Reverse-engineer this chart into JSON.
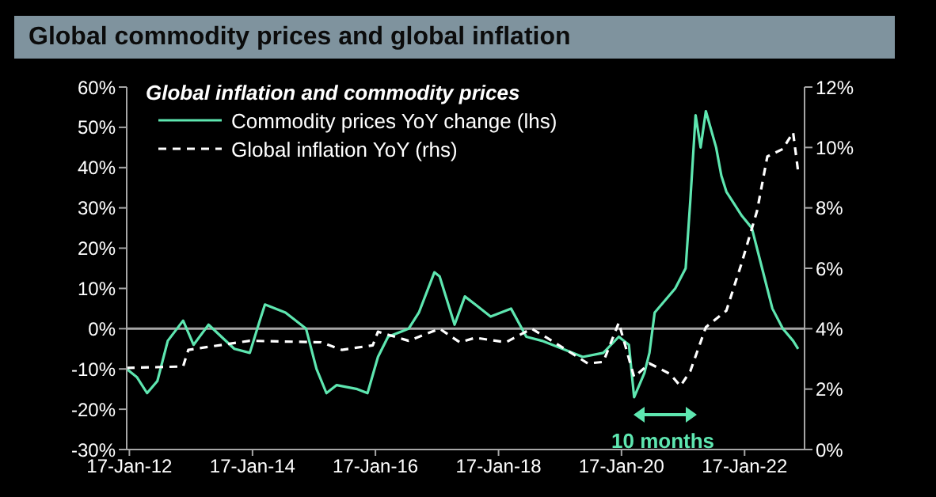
{
  "chart_data": {
    "type": "line",
    "title": "Global commodity prices and global inflation",
    "legend_title": "Global inflation and commodity prices",
    "legend": "top left",
    "grid": false,
    "marker": "none",
    "annotations": [
      "10 months"
    ],
    "xlim": [
      "2012-01-01",
      "2023-01-08"
    ],
    "xticks": [
      {
        "value": "2012-01-17",
        "label": "17-Jan-12"
      },
      {
        "value": "2014-01-17",
        "label": "17-Jan-14"
      },
      {
        "value": "2016-01-17",
        "label": "17-Jan-16"
      },
      {
        "value": "2018-01-17",
        "label": "17-Jan-18"
      },
      {
        "value": "2020-01-17",
        "label": "17-Jan-20"
      },
      {
        "value": "2022-01-17",
        "label": "17-Jan-22"
      }
    ],
    "ylim": [
      -30,
      60
    ],
    "yticks": [
      {
        "value": -30,
        "label": "-30%"
      },
      {
        "value": -20,
        "label": "-20%"
      },
      {
        "value": -10,
        "label": "-10%"
      },
      {
        "value": 0,
        "label": "0%"
      },
      {
        "value": 10,
        "label": "10%"
      },
      {
        "value": 20,
        "label": "20%"
      },
      {
        "value": 30,
        "label": "30%"
      },
      {
        "value": 40,
        "label": "40%"
      },
      {
        "value": 50,
        "label": "50%"
      },
      {
        "value": 60,
        "label": "60%"
      }
    ],
    "y2lim": [
      0,
      12
    ],
    "y2ticks": [
      {
        "value": 0,
        "label": "0%"
      },
      {
        "value": 2,
        "label": "2%"
      },
      {
        "value": 4,
        "label": "4%"
      },
      {
        "value": 6,
        "label": "6%"
      },
      {
        "value": 8,
        "label": "8%"
      },
      {
        "value": 10,
        "label": "10%"
      },
      {
        "value": 12,
        "label": "12%"
      }
    ],
    "ref_lines": [
      {
        "axis": "y",
        "value": 0,
        "color": "#a6a6a6"
      }
    ],
    "series": [
      {
        "name": "Commodity prices YoY change (lhs)",
        "color": "#5ee6b0",
        "line_style": "solid",
        "x": [
          "2012-01",
          "2012-03",
          "2012-05",
          "2012-07",
          "2012-09",
          "2012-12",
          "2013-02",
          "2013-05",
          "2013-10",
          "2014-01",
          "2014-03",
          "2014-04",
          "2014-08",
          "2014-12",
          "2015-02",
          "2015-04",
          "2015-06",
          "2015-10",
          "2015-12",
          "2016-02",
          "2016-04",
          "2016-08",
          "2016-10",
          "2017-01",
          "2017-02",
          "2017-05",
          "2017-07",
          "2017-09",
          "2017-12",
          "2018-04",
          "2018-07",
          "2018-10",
          "2019-02",
          "2019-06",
          "2019-10",
          "2020-01",
          "2020-03",
          "2020-04",
          "2020-06",
          "2020-07",
          "2020-08",
          "2020-12",
          "2021-02",
          "2021-03",
          "2021-04",
          "2021-05",
          "2021-06",
          "2021-08",
          "2021-09",
          "2021-10",
          "2022-01",
          "2022-03",
          "2022-05",
          "2022-07",
          "2022-09",
          "2022-11",
          "2022-12"
        ],
        "values": [
          -10,
          -12,
          -16,
          -13,
          -3,
          2,
          -4,
          1,
          -5,
          -6,
          2,
          6,
          4,
          0,
          -10,
          -16,
          -14,
          -15,
          -16,
          -7,
          -2,
          0,
          4,
          14,
          13,
          1,
          8,
          6,
          3,
          5,
          -2,
          -3,
          -5,
          -7,
          -6,
          -2,
          -4,
          -17,
          -11,
          -6,
          4,
          10,
          15,
          32,
          53,
          45,
          54,
          45,
          38,
          34,
          28,
          25,
          15,
          5,
          0,
          -3,
          -5
        ]
      },
      {
        "name": "Global inflation YoY (rhs)",
        "color": "#ffffff",
        "line_style": "dashed",
        "axis": "y2",
        "x": [
          "2012-01",
          "2012-12",
          "2013-01",
          "2014-01",
          "2015-03",
          "2015-07",
          "2016-01",
          "2016-02",
          "2016-08",
          "2017-02",
          "2017-06",
          "2017-09",
          "2018-03",
          "2018-08",
          "2018-11",
          "2019-07",
          "2019-10",
          "2020-01",
          "2020-04",
          "2020-07",
          "2020-11",
          "2021-01",
          "2021-03",
          "2021-06",
          "2021-10",
          "2022-01",
          "2022-04",
          "2022-06",
          "2022-09",
          "2022-11",
          "2022-12"
        ],
        "values": [
          2.7,
          2.75,
          3.3,
          3.6,
          3.55,
          3.3,
          3.45,
          3.9,
          3.6,
          4.0,
          3.55,
          3.7,
          3.55,
          4.0,
          3.7,
          2.85,
          2.9,
          4.2,
          2.4,
          2.85,
          2.5,
          2.1,
          2.6,
          4.05,
          4.6,
          6.2,
          7.9,
          9.7,
          9.95,
          10.5,
          9.2
        ]
      }
    ]
  }
}
